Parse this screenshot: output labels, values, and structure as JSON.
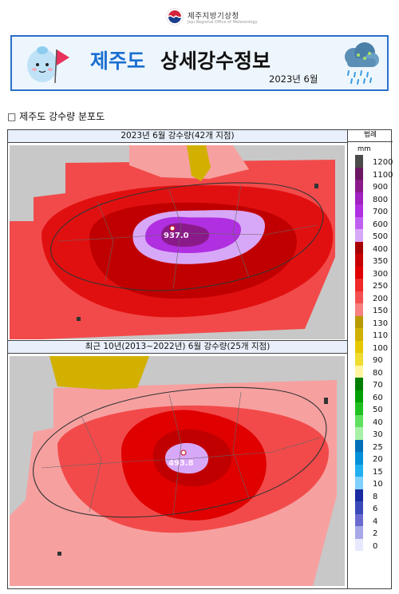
{
  "agency": {
    "name_ko": "제주지방기상청",
    "name_en": "Jeju Regional Office of Meteorology"
  },
  "banner": {
    "title_highlight": "제주도",
    "title_main": "상세강수정보",
    "date": "2023년 6월"
  },
  "section": {
    "heading": "□  제주도 강수량 분포도"
  },
  "maps": [
    {
      "title": "2023년 6월 강수량(42개 지점)",
      "peak_label": "937.0",
      "peak_value": 937.0
    },
    {
      "title": "최근 10년(2013~2022년) 6월 강수량(25개 지점)",
      "peak_label": "493.8",
      "peak_value": 493.8
    }
  ],
  "legend": {
    "title": "범례",
    "unit": "mm",
    "levels": [
      {
        "label": "1200",
        "color": "#4a4a4a"
      },
      {
        "label": "1100",
        "color": "#6a1660"
      },
      {
        "label": "900",
        "color": "#8a1a8a"
      },
      {
        "label": "800",
        "color": "#a020c0"
      },
      {
        "label": "700",
        "color": "#b02fe0"
      },
      {
        "label": "600",
        "color": "#c060f0"
      },
      {
        "label": "500",
        "color": "#d8a8f8"
      },
      {
        "label": "400",
        "color": "#a80000"
      },
      {
        "label": "350",
        "color": "#c80000"
      },
      {
        "label": "300",
        "color": "#e00000"
      },
      {
        "label": "250",
        "color": "#f02828"
      },
      {
        "label": "200",
        "color": "#f45050"
      },
      {
        "label": "150",
        "color": "#f88080"
      },
      {
        "label": "130",
        "color": "#b89a00"
      },
      {
        "label": "110",
        "color": "#d0b000"
      },
      {
        "label": "100",
        "color": "#e6c800"
      },
      {
        "label": "90",
        "color": "#f0dc30"
      },
      {
        "label": "80",
        "color": "#fff5a0"
      },
      {
        "label": "70",
        "color": "#007d00"
      },
      {
        "label": "60",
        "color": "#00a000"
      },
      {
        "label": "50",
        "color": "#20c020"
      },
      {
        "label": "40",
        "color": "#60e060"
      },
      {
        "label": "30",
        "color": "#a8f0a8"
      },
      {
        "label": "25",
        "color": "#0070b8"
      },
      {
        "label": "20",
        "color": "#0090d8"
      },
      {
        "label": "15",
        "color": "#20b0f0"
      },
      {
        "label": "10",
        "color": "#80d0ff"
      },
      {
        "label": "8",
        "color": "#1a2aa0"
      },
      {
        "label": "6",
        "color": "#3a4ab8"
      },
      {
        "label": "4",
        "color": "#6a6ad0"
      },
      {
        "label": "2",
        "color": "#a8a8e8"
      },
      {
        "label": "0",
        "color": "#e8e8ff"
      }
    ]
  },
  "colors": {
    "banner_border": "#2a70c8",
    "banner_bg": "#eef6fd",
    "title_blue": "#1b6fd0"
  }
}
